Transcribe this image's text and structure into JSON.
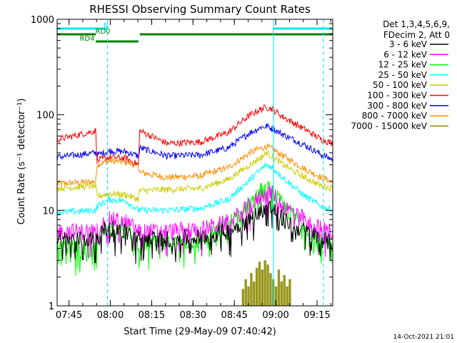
{
  "chart_data": {
    "type": "line",
    "title": "RHESSI Observing Summary Count Rates",
    "xlabel": "Start Time (29-May-09 07:40:42)",
    "ylabel": "Count Rate (s⁻¹ detector⁻¹)",
    "yscale": "log",
    "xlim_minutes": [
      0,
      100
    ],
    "ylim": [
      1,
      1000
    ],
    "x_ticks": [
      {
        "label": "07:45",
        "minutes": 4.3
      },
      {
        "label": "08:00",
        "minutes": 19.3
      },
      {
        "label": "08:15",
        "minutes": 34.3
      },
      {
        "label": "08:30",
        "minutes": 49.3
      },
      {
        "label": "08:45",
        "minutes": 64.3
      },
      {
        "label": "09:00",
        "minutes": 79.3
      },
      {
        "label": "09:15",
        "minutes": 94.3
      }
    ],
    "y_ticks": [
      {
        "label": "1",
        "value": 1
      },
      {
        "label": "10",
        "value": 10
      },
      {
        "label": "100",
        "value": 100
      },
      {
        "label": "1000",
        "value": 1000
      }
    ],
    "legend_header": [
      "Det 1,3,4,5,6,9,",
      "FDecim 2, Att 0"
    ],
    "legend_position": "right, outside plot",
    "timestamp": "14-Oct-2021 21:01",
    "annotations": [
      {
        "label": "N",
        "color": "#00e5ee",
        "segments": [
          [
            0,
            18.3
          ],
          [
            78.5,
            100
          ]
        ]
      },
      {
        "label": "RD0",
        "color": "#008000",
        "segments": [
          [
            0,
            14
          ],
          [
            30,
            100
          ]
        ]
      },
      {
        "label": "RD4",
        "color": "#008000",
        "segments": [
          [
            14,
            29.5
          ]
        ]
      }
    ],
    "vlines": [
      {
        "minutes": 0,
        "style": "solid"
      },
      {
        "minutes": 18.3,
        "style": "dashed"
      },
      {
        "minutes": 78.5,
        "style": "solid"
      },
      {
        "minutes": 96.6,
        "style": "dashed"
      }
    ],
    "series": [
      {
        "name": "3 - 6 keV",
        "color": "#000000",
        "x": [
          0,
          14,
          14.5,
          19,
          25,
          29.5,
          30,
          40,
          52,
          62,
          70,
          74,
          76,
          78,
          82,
          90,
          96,
          100
        ],
        "values": [
          5,
          5,
          5.5,
          6.5,
          6,
          5,
          5,
          5,
          5.2,
          6,
          8,
          10,
          11,
          10.5,
          8,
          6,
          5,
          4.5
        ]
      },
      {
        "name": "6 - 12 keV",
        "color": "#ff00ff",
        "x": [
          0,
          14,
          14.5,
          19,
          25,
          29.5,
          30,
          40,
          52,
          62,
          70,
          74,
          76,
          78,
          82,
          90,
          96,
          100
        ],
        "values": [
          6,
          6,
          6.5,
          8,
          7.5,
          6,
          6,
          6,
          6.3,
          7.5,
          11,
          14,
          15.5,
          15,
          11,
          8,
          6.3,
          6
        ]
      },
      {
        "name": "12 - 25 keV",
        "color": "#00ff00",
        "x": [
          0,
          14,
          14.5,
          19,
          25,
          29.5,
          30,
          40,
          52,
          62,
          70,
          74,
          76,
          78,
          82,
          90,
          96,
          100
        ],
        "values": [
          4,
          4,
          5,
          7,
          6.5,
          4.5,
          4.5,
          4.5,
          4.8,
          7,
          12,
          16,
          17,
          16,
          11,
          7,
          4.5,
          4
        ]
      },
      {
        "name": "25 - 50 keV",
        "color": "#00ffff",
        "x": [
          0,
          14,
          14.5,
          19,
          25,
          29.5,
          30,
          40,
          52,
          62,
          70,
          74,
          76,
          78,
          82,
          90,
          96,
          100
        ],
        "values": [
          9.5,
          10,
          11,
          13,
          12.5,
          10,
          10,
          10,
          10.5,
          13,
          21,
          27,
          30,
          28,
          22,
          14,
          11,
          10
        ]
      },
      {
        "name": "50 - 100 keV",
        "color": "#cccc00",
        "x": [
          0,
          14,
          14.5,
          19,
          25,
          29.5,
          30,
          40,
          52,
          62,
          70,
          74,
          76,
          78,
          82,
          90,
          96,
          100
        ],
        "values": [
          17,
          18,
          14,
          15,
          14.5,
          13,
          16,
          16.5,
          17,
          21,
          30,
          36,
          40,
          37,
          30,
          22,
          18,
          17
        ]
      },
      {
        "name": "100 - 300 keV",
        "color": "#ff0000",
        "x": [
          0,
          14,
          14.5,
          19,
          25,
          29.5,
          30,
          40,
          52,
          62,
          70,
          74,
          76,
          78,
          82,
          90,
          96,
          100
        ],
        "values": [
          55,
          68,
          33,
          36,
          35,
          30,
          68,
          50,
          52,
          65,
          100,
          115,
          120,
          115,
          95,
          70,
          55,
          50
        ]
      },
      {
        "name": "300 - 800 keV",
        "color": "#0000ff",
        "x": [
          0,
          14,
          14.5,
          19,
          25,
          29.5,
          30,
          40,
          52,
          62,
          70,
          74,
          76,
          78,
          82,
          90,
          96,
          100
        ],
        "values": [
          36,
          40,
          38,
          42,
          41,
          37,
          45,
          37,
          38,
          45,
          65,
          74,
          76,
          72,
          62,
          48,
          38,
          34
        ]
      },
      {
        "name": "800 - 7000 keV",
        "color": "#ff8c00",
        "x": [
          0,
          14,
          14.5,
          19,
          25,
          29.5,
          30,
          40,
          52,
          62,
          70,
          74,
          76,
          78,
          82,
          90,
          96,
          100
        ],
        "values": [
          19,
          20,
          30,
          33,
          32,
          29,
          25,
          22,
          23,
          28,
          40,
          45,
          46,
          44,
          37,
          27,
          22,
          20
        ]
      },
      {
        "name": "7000 - 15000 keV",
        "color": "#8b8b00",
        "x": [
          67,
          68,
          69,
          70,
          71,
          72,
          73,
          74,
          75,
          76,
          77,
          78,
          79,
          80,
          81,
          82,
          83,
          84
        ],
        "values": [
          1.5,
          1.9,
          1.6,
          2.2,
          1.8,
          2.5,
          2.9,
          2.4,
          3,
          2.7,
          2.2,
          1.9,
          1.6,
          2.4,
          1.8,
          2.1,
          1.6,
          1.9
        ]
      }
    ]
  }
}
